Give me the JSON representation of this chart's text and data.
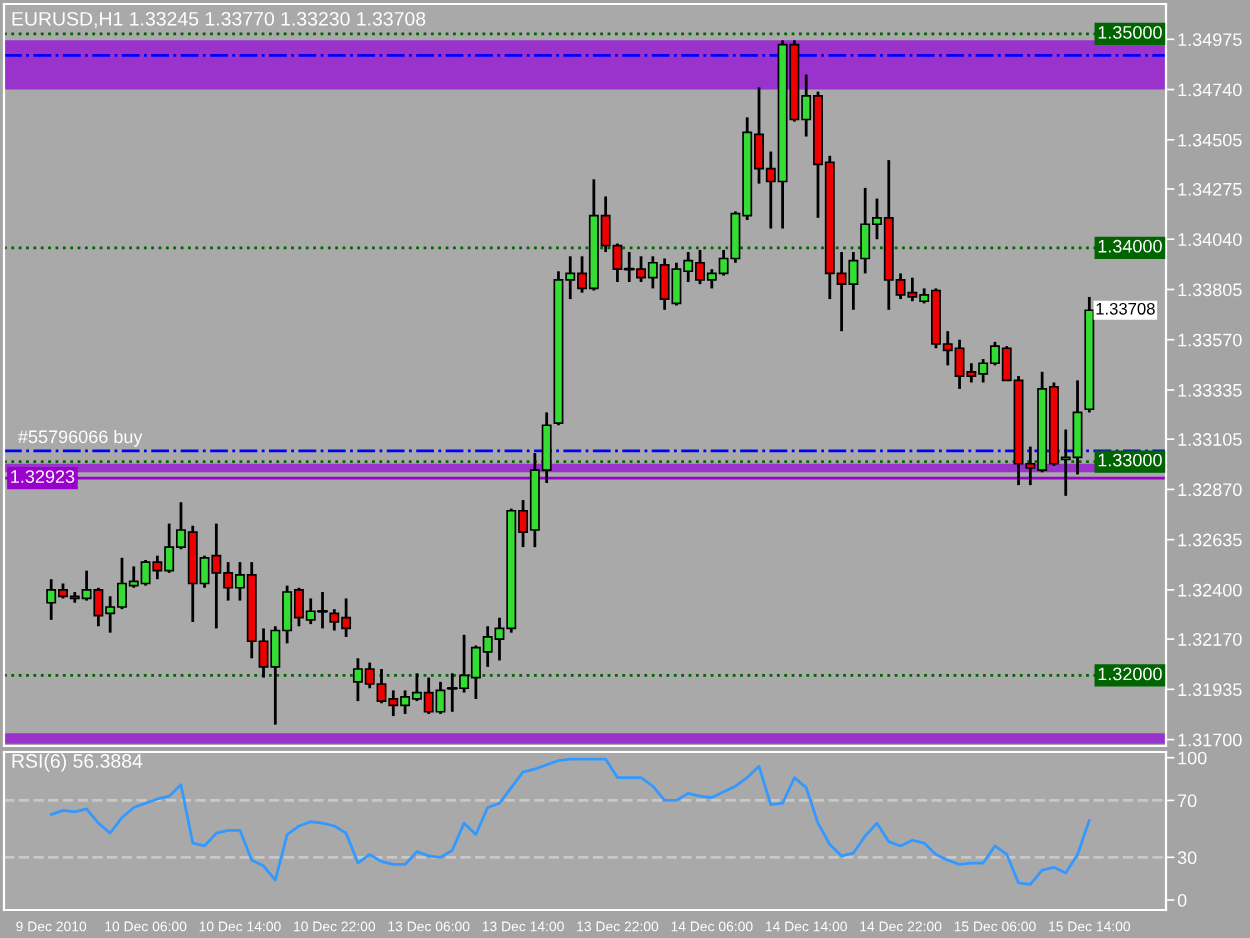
{
  "chart_data": [
    {
      "type": "candlestick",
      "title": "EURUSD,H1 1.33245 1.33770 1.33230 1.33708",
      "categories": [
        "9 Dec 2010",
        null,
        null,
        null,
        null,
        null,
        null,
        null,
        "10 Dec 06:00",
        null,
        null,
        null,
        null,
        null,
        null,
        null,
        "10 Dec 14:00",
        null,
        null,
        null,
        null,
        null,
        null,
        null,
        "10 Dec 22:00",
        null,
        null,
        null,
        null,
        null,
        null,
        null,
        "13 Dec 06:00",
        null,
        null,
        null,
        null,
        null,
        null,
        null,
        "13 Dec 14:00",
        null,
        null,
        null,
        null,
        null,
        null,
        null,
        "13 Dec 22:00",
        null,
        null,
        null,
        null,
        null,
        null,
        null,
        "14 Dec 06:00",
        null,
        null,
        null,
        null,
        null,
        null,
        null,
        "14 Dec 14:00",
        null,
        null,
        null,
        null,
        null,
        null,
        null,
        "14 Dec 22:00",
        null,
        null,
        null,
        null,
        null,
        null,
        null,
        "15 Dec 06:00",
        null,
        null,
        null,
        null,
        null,
        null,
        null,
        "15 Dec 14:00"
      ],
      "ohlc": [
        [
          1.3234,
          1.3245,
          1.3226,
          1.324
        ],
        [
          1.324,
          1.3243,
          1.3236,
          1.3237
        ],
        [
          1.3236,
          1.3239,
          1.3234,
          1.3237
        ],
        [
          1.3236,
          1.3249,
          1.3235,
          1.324
        ],
        [
          1.324,
          1.3241,
          1.3223,
          1.3228
        ],
        [
          1.3229,
          1.3237,
          1.322,
          1.3232
        ],
        [
          1.3232,
          1.3255,
          1.3231,
          1.3243
        ],
        [
          1.3242,
          1.3251,
          1.3241,
          1.3244
        ],
        [
          1.3243,
          1.3254,
          1.3242,
          1.3253
        ],
        [
          1.3253,
          1.3256,
          1.3245,
          1.3249
        ],
        [
          1.3249,
          1.3271,
          1.3248,
          1.326
        ],
        [
          1.326,
          1.3281,
          1.3259,
          1.3268
        ],
        [
          1.3267,
          1.327,
          1.3225,
          1.3243
        ],
        [
          1.3243,
          1.3256,
          1.3241,
          1.3255
        ],
        [
          1.3256,
          1.3271,
          1.3222,
          1.3248
        ],
        [
          1.3248,
          1.3253,
          1.3235,
          1.3241
        ],
        [
          1.3241,
          1.3253,
          1.3235,
          1.3247
        ],
        [
          1.3247,
          1.3253,
          1.3208,
          1.3216
        ],
        [
          1.3216,
          1.3222,
          1.3199,
          1.3204
        ],
        [
          1.3204,
          1.3223,
          1.3177,
          1.3221
        ],
        [
          1.3221,
          1.3242,
          1.3215,
          1.3239
        ],
        [
          1.324,
          1.3241,
          1.3223,
          1.3227
        ],
        [
          1.3226,
          1.3236,
          1.3224,
          1.323
        ],
        [
          1.323,
          1.3239,
          1.3222,
          1.323
        ],
        [
          1.3229,
          1.3231,
          1.3221,
          1.3225
        ],
        [
          1.3227,
          1.3236,
          1.3218,
          1.3222
        ],
        [
          1.3197,
          1.3208,
          1.3188,
          1.3203
        ],
        [
          1.3203,
          1.3206,
          1.3194,
          1.3196
        ],
        [
          1.3196,
          1.3203,
          1.3187,
          1.3188
        ],
        [
          1.3189,
          1.3193,
          1.3181,
          1.3186
        ],
        [
          1.3186,
          1.3193,
          1.3182,
          1.319
        ],
        [
          1.3189,
          1.3201,
          1.3188,
          1.3192
        ],
        [
          1.3192,
          1.3199,
          1.3182,
          1.3183
        ],
        [
          1.3183,
          1.3197,
          1.3182,
          1.3193
        ],
        [
          1.3194,
          1.3201,
          1.3183,
          1.3194
        ],
        [
          1.3194,
          1.3219,
          1.3192,
          1.32
        ],
        [
          1.3199,
          1.3214,
          1.3189,
          1.3213
        ],
        [
          1.3211,
          1.3223,
          1.3204,
          1.3218
        ],
        [
          1.3217,
          1.3227,
          1.3207,
          1.3222
        ],
        [
          1.3222,
          1.3278,
          1.322,
          1.3277
        ],
        [
          1.3277,
          1.3282,
          1.326,
          1.3267
        ],
        [
          1.3268,
          1.3304,
          1.326,
          1.3296
        ],
        [
          1.3296,
          1.3323,
          1.329,
          1.3317
        ],
        [
          1.3318,
          1.3389,
          1.3317,
          1.3385
        ],
        [
          1.3385,
          1.3396,
          1.3376,
          1.3388
        ],
        [
          1.3388,
          1.3396,
          1.3379,
          1.3381
        ],
        [
          1.3381,
          1.3432,
          1.338,
          1.3415
        ],
        [
          1.3415,
          1.3424,
          1.3398,
          1.3401
        ],
        [
          1.3401,
          1.3402,
          1.3384,
          1.339
        ],
        [
          1.339,
          1.3398,
          1.3384,
          1.339
        ],
        [
          1.339,
          1.3396,
          1.3384,
          1.3386
        ],
        [
          1.3386,
          1.3396,
          1.3381,
          1.3393
        ],
        [
          1.3392,
          1.3395,
          1.3371,
          1.3376
        ],
        [
          1.3374,
          1.3393,
          1.3373,
          1.339
        ],
        [
          1.3389,
          1.3398,
          1.3384,
          1.3394
        ],
        [
          1.3393,
          1.3399,
          1.3383,
          1.3385
        ],
        [
          1.3385,
          1.339,
          1.3381,
          1.3388
        ],
        [
          1.3388,
          1.3399,
          1.3387,
          1.3395
        ],
        [
          1.3395,
          1.3417,
          1.3393,
          1.3416
        ],
        [
          1.3415,
          1.3461,
          1.3413,
          1.3454
        ],
        [
          1.3453,
          1.3475,
          1.343,
          1.3437
        ],
        [
          1.3437,
          1.3445,
          1.3409,
          1.3431
        ],
        [
          1.3431,
          1.3497,
          1.3409,
          1.3495
        ],
        [
          1.3495,
          1.3497,
          1.3459,
          1.346
        ],
        [
          1.346,
          1.3481,
          1.3452,
          1.3471
        ],
        [
          1.3471,
          1.3473,
          1.3414,
          1.3439
        ],
        [
          1.344,
          1.3443,
          1.3376,
          1.3388
        ],
        [
          1.3388,
          1.3398,
          1.3361,
          1.3383
        ],
        [
          1.3383,
          1.3398,
          1.3371,
          1.3394
        ],
        [
          1.3395,
          1.3428,
          1.3388,
          1.3411
        ],
        [
          1.3411,
          1.3423,
          1.3404,
          1.3414
        ],
        [
          1.3414,
          1.3441,
          1.3371,
          1.3385
        ],
        [
          1.3385,
          1.3388,
          1.3376,
          1.3378
        ],
        [
          1.3379,
          1.3386,
          1.3375,
          1.3377
        ],
        [
          1.3375,
          1.3381,
          1.3374,
          1.3378
        ],
        [
          1.338,
          1.3381,
          1.3353,
          1.3355
        ],
        [
          1.3355,
          1.3361,
          1.3345,
          1.3352
        ],
        [
          1.3353,
          1.3357,
          1.3334,
          1.334
        ],
        [
          1.3342,
          1.3346,
          1.3337,
          1.334
        ],
        [
          1.3341,
          1.3348,
          1.3337,
          1.3346
        ],
        [
          1.3346,
          1.3356,
          1.3345,
          1.3354
        ],
        [
          1.3353,
          1.3354,
          1.3338,
          1.3338
        ],
        [
          1.3338,
          1.334,
          1.3289,
          1.3299
        ],
        [
          1.3299,
          1.3307,
          1.3289,
          1.3297
        ],
        [
          1.3296,
          1.3342,
          1.3295,
          1.3334
        ],
        [
          1.3335,
          1.3337,
          1.3298,
          1.3299
        ],
        [
          1.3301,
          1.3315,
          1.3284,
          1.3302
        ],
        [
          1.3302,
          1.3338,
          1.3294,
          1.3323
        ],
        [
          1.33245,
          1.3377,
          1.3323,
          1.33708
        ]
      ],
      "ylim": [
        1.3167,
        1.3514
      ],
      "yticks": [
        {
          "value": 1.34975,
          "label": "1.34975"
        },
        {
          "value": 1.3474,
          "label": "1.34740"
        },
        {
          "value": 1.34505,
          "label": "1.34505"
        },
        {
          "value": 1.34275,
          "label": "1.34275"
        },
        {
          "value": 1.3404,
          "label": "1.34040"
        },
        {
          "value": 1.33805,
          "label": "1.33805"
        },
        {
          "value": 1.3357,
          "label": "1.33570"
        },
        {
          "value": 1.33335,
          "label": "1.33335"
        },
        {
          "value": 1.33105,
          "label": "1.33105"
        },
        {
          "value": 1.3287,
          "label": "1.32870"
        },
        {
          "value": 1.32635,
          "label": "1.32635"
        },
        {
          "value": 1.324,
          "label": "1.32400"
        },
        {
          "value": 1.3217,
          "label": "1.32170"
        },
        {
          "value": 1.31935,
          "label": "1.31935"
        },
        {
          "value": 1.317,
          "label": "1.31700"
        }
      ],
      "tick_labels": "y",
      "bands": [
        {
          "axis": "y",
          "from": 1.3474,
          "to": 1.3497,
          "color": "#9933cc"
        },
        {
          "axis": "y",
          "from": 1.3295,
          "to": 1.3299,
          "color": "#9933cc"
        },
        {
          "axis": "y",
          "from": 1.3168,
          "to": 1.3173,
          "color": "#9933cc"
        }
      ],
      "ref_lines": [
        {
          "axis": "y",
          "value": 1.35,
          "label": "1.35000",
          "color": "#006400",
          "line_style": "dotted"
        },
        {
          "axis": "y",
          "value": 1.34,
          "label": "1.34000",
          "color": "#006400",
          "line_style": "dotted"
        },
        {
          "axis": "y",
          "value": 1.33,
          "label": "1.33000",
          "color": "#006400",
          "line_style": "dotted"
        },
        {
          "axis": "y",
          "value": 1.32923,
          "label": "1.32923",
          "color": "#9900cc",
          "line_style": "solid"
        },
        {
          "axis": "y",
          "value": 1.32,
          "label": "1.32000",
          "color": "#006400",
          "line_style": "dotted"
        },
        {
          "axis": "y",
          "value": 1.3305,
          "label": "#55796066 buy",
          "color": "#0000ff",
          "line_style": "dashdot"
        },
        {
          "axis": "y",
          "value": 1.349,
          "color": "#0000ff",
          "line_style": "dashdot"
        }
      ],
      "annotations": [
        {
          "text": "1.33708",
          "x": "15 Dec 14:00",
          "y": 1.33708
        }
      ]
    },
    {
      "type": "line",
      "title": "RSI(6) 56.3884",
      "categories": [
        "9 Dec 2010",
        null,
        null,
        null,
        null,
        null,
        null,
        null,
        "10 Dec 06:00",
        null,
        null,
        null,
        null,
        null,
        null,
        null,
        "10 Dec 14:00",
        null,
        null,
        null,
        null,
        null,
        null,
        null,
        "10 Dec 22:00",
        null,
        null,
        null,
        null,
        null,
        null,
        null,
        "13 Dec 06:00",
        null,
        null,
        null,
        null,
        null,
        null,
        null,
        "13 Dec 14:00",
        null,
        null,
        null,
        null,
        null,
        null,
        null,
        "13 Dec 22:00",
        null,
        null,
        null,
        null,
        null,
        null,
        null,
        "14 Dec 06:00",
        null,
        null,
        null,
        null,
        null,
        null,
        null,
        "14 Dec 14:00",
        null,
        null,
        null,
        null,
        null,
        null,
        null,
        "14 Dec 22:00",
        null,
        null,
        null,
        null,
        null,
        null,
        null,
        "15 Dec 06:00",
        null,
        null,
        null,
        null,
        null,
        null,
        null,
        "15 Dec 14:00"
      ],
      "series": [
        {
          "color": "#3399ff",
          "values": [
            60,
            63,
            62,
            64,
            54,
            47,
            58,
            65,
            68,
            71,
            73,
            81,
            40,
            38,
            47,
            49,
            49,
            28,
            24,
            14,
            46,
            52,
            55,
            54,
            52,
            47,
            26,
            32,
            27,
            25,
            25,
            34,
            31,
            30,
            35,
            54,
            46,
            65,
            68,
            79,
            90,
            92,
            95,
            98,
            99,
            99,
            99,
            99,
            86,
            86,
            86,
            80,
            70,
            70,
            75,
            73,
            72,
            76,
            80,
            86,
            94,
            67,
            68,
            86,
            79,
            54,
            39,
            31,
            33,
            45,
            54,
            41,
            38,
            42,
            40,
            32,
            28,
            25,
            26,
            26,
            38,
            32,
            12,
            11,
            21,
            23,
            19,
            32,
            56
          ]
        }
      ],
      "ylim": [
        -7,
        104
      ],
      "yticks": [
        0,
        30,
        70,
        100
      ],
      "ref_lines": [
        {
          "axis": "y",
          "value": 30,
          "color": "#c8c8c8",
          "line_style": "dashed"
        },
        {
          "axis": "y",
          "value": 70,
          "color": "#c8c8c8",
          "line_style": "dashed"
        }
      ]
    }
  ]
}
